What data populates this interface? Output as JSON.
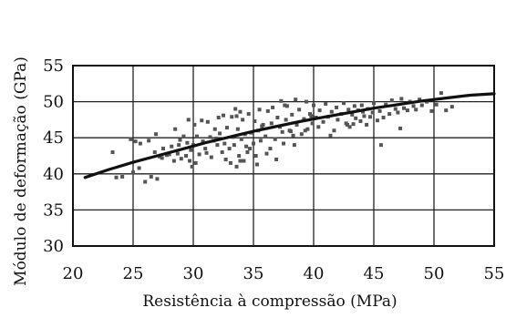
{
  "chart_data": {
    "type": "scatter",
    "xlabel": "Resistência à compressão (MPa)",
    "ylabel": "Módulo de deformação (GPa)",
    "xlim": [
      20,
      55
    ],
    "ylim": [
      30,
      55
    ],
    "xticks": [
      20,
      25,
      30,
      35,
      40,
      45,
      50,
      55
    ],
    "yticks": [
      30,
      35,
      40,
      45,
      50,
      55
    ],
    "grid": true,
    "colors": {
      "points": "#555555",
      "curve": "#111111",
      "grid": "#222222"
    },
    "series": [
      {
        "kind": "points",
        "x": [
          23.3,
          23.6,
          24.1,
          24.8,
          25.0,
          25.2,
          25.5,
          25.6,
          26.0,
          26.3,
          26.5,
          26.8,
          27.0,
          27.2,
          27.5,
          27.8,
          28.0,
          28.2,
          28.4,
          28.5,
          28.7,
          28.8,
          29.0,
          29.2,
          29.4,
          29.5,
          29.6,
          29.8,
          29.9,
          30.0,
          30.1,
          30.3,
          30.5,
          30.7,
          30.8,
          31.0,
          31.2,
          31.4,
          31.5,
          31.7,
          31.8,
          32.0,
          32.1,
          32.2,
          32.4,
          32.5,
          32.6,
          32.8,
          33.0,
          33.1,
          33.2,
          33.3,
          33.4,
          33.5,
          33.6,
          33.7,
          33.8,
          33.9,
          34.0,
          34.1,
          34.2,
          34.3,
          34.5,
          34.6,
          34.8,
          35.0,
          35.1,
          35.2,
          35.4,
          35.5,
          35.6,
          35.8,
          36.0,
          36.2,
          36.4,
          36.5,
          36.6,
          36.8,
          37.0,
          37.2,
          37.3,
          37.5,
          37.7,
          37.8,
          38.0,
          38.2,
          38.3,
          38.5,
          38.6,
          38.8,
          39.0,
          39.2,
          39.4,
          39.5,
          39.7,
          39.9,
          40.0,
          40.2,
          40.4,
          40.5,
          40.8,
          41.0,
          41.2,
          41.5,
          41.7,
          41.9,
          42.0,
          42.3,
          42.5,
          42.7,
          42.9,
          43.0,
          43.2,
          43.4,
          43.5,
          43.7,
          43.9,
          44.0,
          44.2,
          44.4,
          44.5,
          44.7,
          44.9,
          45.0,
          45.3,
          45.5,
          45.8,
          46.0,
          46.3,
          46.5,
          46.8,
          47.0,
          47.3,
          47.5,
          47.8,
          48.0,
          48.3,
          48.5,
          48.8,
          49.0,
          49.4,
          49.8,
          50.2,
          50.6,
          51.0,
          51.5,
          30.2,
          32.7,
          33.6,
          35.3,
          36.1,
          37.6,
          38.4,
          39.3,
          41.4,
          42.8,
          44.1,
          45.6,
          47.2,
          26.9,
          28.9,
          31.1,
          33.9,
          34.7,
          36.9,
          38.1,
          27.4,
          29.7,
          31.9,
          34.4,
          35.7,
          37.4,
          39.8,
          43.3
        ],
        "y": [
          43.0,
          39.5,
          39.6,
          44.8,
          40.2,
          44.5,
          40.8,
          44.2,
          38.9,
          44.6,
          39.6,
          43.0,
          39.3,
          42.4,
          43.5,
          42.6,
          42.7,
          43.8,
          41.8,
          46.2,
          42.8,
          44.0,
          42.1,
          45.2,
          42.5,
          44.3,
          47.5,
          43.3,
          41.0,
          44.0,
          46.8,
          45.2,
          42.7,
          47.4,
          44.5,
          43.5,
          47.2,
          45.1,
          42.3,
          44.6,
          46.2,
          44.0,
          47.8,
          45.6,
          43.0,
          48.1,
          44.2,
          46.4,
          43.5,
          41.5,
          47.9,
          45.1,
          44.0,
          49.0,
          41.0,
          46.2,
          42.5,
          48.6,
          44.8,
          47.5,
          41.8,
          45.5,
          43.0,
          48.3,
          45.7,
          44.2,
          47.3,
          42.5,
          46.0,
          48.9,
          44.6,
          46.8,
          45.2,
          48.7,
          43.5,
          47.0,
          49.2,
          44.8,
          47.8,
          46.5,
          50.1,
          44.2,
          47.5,
          49.4,
          46.0,
          48.2,
          45.3,
          50.3,
          46.8,
          48.9,
          45.5,
          47.6,
          50.0,
          46.2,
          48.3,
          47.0,
          49.5,
          47.8,
          46.5,
          48.8,
          47.2,
          49.7,
          47.9,
          48.6,
          46.0,
          49.2,
          47.5,
          48.3,
          49.8,
          47.0,
          48.9,
          46.5,
          48.2,
          49.4,
          47.7,
          48.8,
          47.3,
          49.5,
          48.0,
          46.8,
          49.0,
          47.9,
          48.5,
          49.8,
          47.4,
          48.7,
          47.8,
          49.6,
          48.3,
          50.2,
          49.0,
          48.5,
          50.4,
          49.1,
          48.8,
          50.0,
          49.4,
          48.9,
          50.3,
          49.5,
          50.0,
          48.7,
          49.6,
          51.2,
          48.8,
          49.3,
          41.5,
          42.0,
          48.0,
          41.3,
          42.8,
          49.5,
          44.0,
          46.0,
          45.3,
          46.8,
          48.6,
          44.0,
          46.3,
          45.5,
          44.7,
          42.9,
          41.8,
          43.5,
          42.0,
          45.9,
          42.2,
          41.8,
          44.9,
          43.8,
          46.6,
          45.8,
          48.0,
          46.9
        ]
      },
      {
        "kind": "curve",
        "x": [
          21,
          23,
          25,
          27,
          29,
          31,
          33,
          35,
          37,
          39,
          41,
          43,
          45,
          47,
          49,
          51,
          53,
          55
        ],
        "y": [
          39.5,
          40.6,
          41.6,
          42.5,
          43.4,
          44.3,
          45.1,
          45.9,
          46.6,
          47.3,
          47.9,
          48.5,
          49.1,
          49.6,
          50.1,
          50.5,
          50.9,
          51.1
        ]
      }
    ]
  }
}
